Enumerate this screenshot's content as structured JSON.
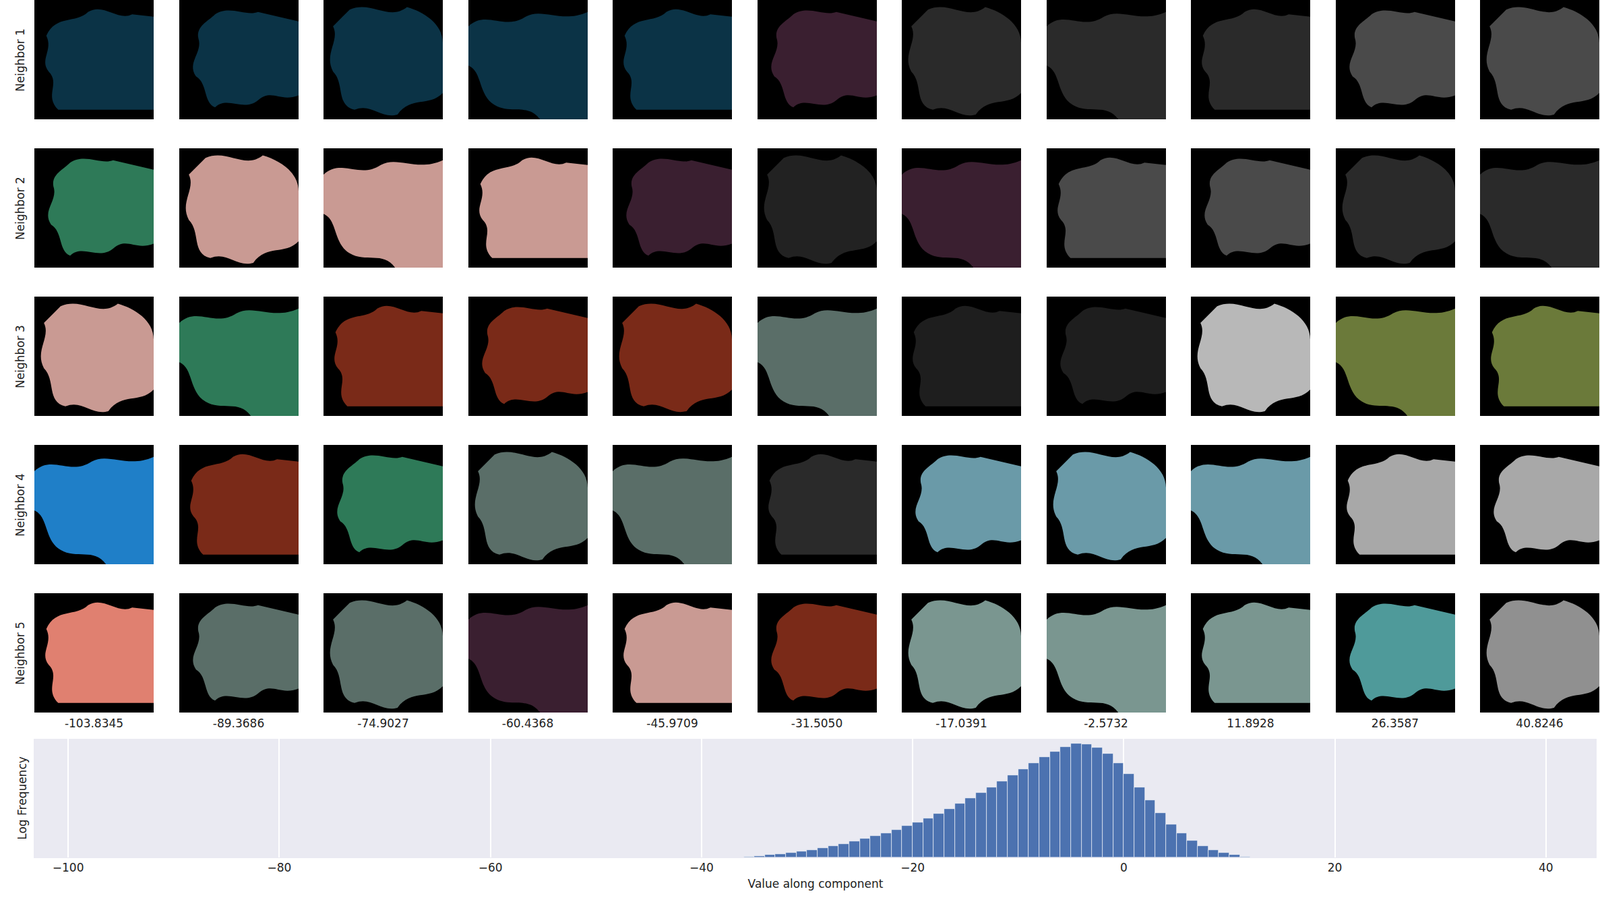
{
  "chart_data": {
    "type": "histogram",
    "x_label": "Value along component",
    "y_label": "Log Frequency",
    "bins": [
      -36,
      -35,
      -34,
      -33,
      -32,
      -31,
      -30,
      -29,
      -28,
      -27,
      -26,
      -25,
      -24,
      -23,
      -22,
      -21,
      -20,
      -19,
      -18,
      -17,
      -16,
      -15,
      -14,
      -13,
      -12,
      -11,
      -10,
      -9,
      -8,
      -7,
      -6,
      -5,
      -4,
      -3,
      -2,
      -1,
      0,
      1,
      2,
      3,
      4,
      5,
      6,
      7,
      8,
      9,
      10,
      11,
      12
    ],
    "values": [
      0.05,
      0.08,
      0.12,
      0.17,
      0.23,
      0.3,
      0.38,
      0.47,
      0.57,
      0.68,
      0.8,
      0.93,
      1.07,
      1.22,
      1.38,
      1.56,
      1.75,
      1.96,
      2.18,
      2.42,
      2.67,
      2.94,
      3.22,
      3.5,
      3.8,
      4.1,
      4.4,
      4.7,
      4.98,
      5.25,
      5.5,
      5.65,
      5.62,
      5.45,
      5.15,
      4.7,
      4.15,
      3.5,
      2.85,
      2.2,
      1.65,
      1.2,
      0.85,
      0.57,
      0.37,
      0.22,
      0.12,
      0.05
    ],
    "color": "#4c72b0",
    "xlim": [
      -103.2,
      44.8
    ],
    "xticks": [
      {
        "value": -100,
        "label": "−100"
      },
      {
        "value": -80,
        "label": "−80"
      },
      {
        "value": -60,
        "label": "−60"
      },
      {
        "value": -40,
        "label": "−40"
      },
      {
        "value": -20,
        "label": "−20"
      },
      0,
      20,
      40
    ],
    "ylim": [
      0,
      5.9
    ],
    "grid": true,
    "tick_labels": "x"
  },
  "image_grid": {
    "row_labels": [
      "Neighbor 1",
      "Neighbor 2",
      "Neighbor 3",
      "Neighbor 4",
      "Neighbor 5"
    ],
    "column_labels": [
      "-103.8345",
      "-89.3686",
      "-74.9027",
      "-60.4368",
      "-45.9709",
      "-31.5050",
      "-17.0391",
      "-2.5732",
      "11.8928",
      "26.3587",
      "40.8246"
    ],
    "colors": [
      [
        "#0b3346",
        "#0b3346",
        "#0b3346",
        "#0b3346",
        "#0b3346",
        "#3a1f30",
        "#2a2a2a",
        "#2a2a2a",
        "#2a2a2a",
        "#4a4a4a",
        "#4a4a4a"
      ],
      [
        "#2e7a58",
        "#c99a93",
        "#c99a93",
        "#c99a93",
        "#3a1f30",
        "#222222",
        "#3a1f30",
        "#4a4a4a",
        "#4a4a4a",
        "#2a2a2a",
        "#2a2a2a"
      ],
      [
        "#c99a93",
        "#2e7a58",
        "#7a2a18",
        "#7a2a18",
        "#7a2a18",
        "#5a6e68",
        "#1e1e1e",
        "#1e1e1e",
        "#b8b8b8",
        "#6b7a3a",
        "#6b7a3a"
      ],
      [
        "#1f7fc8",
        "#7a2a18",
        "#2e7a58",
        "#5a6e68",
        "#5a6e68",
        "#2a2a2a",
        "#6a9aa8",
        "#6a9aa8",
        "#6a9aa8",
        "#a8a8a8",
        "#a8a8a8"
      ],
      [
        "#e08070",
        "#5a6e68",
        "#5a6e68",
        "#3a1f30",
        "#c99a93",
        "#7a2a18",
        "#7a9690",
        "#7a9690",
        "#7a9690",
        "#4f9a9a",
        "#909090"
      ]
    ]
  }
}
